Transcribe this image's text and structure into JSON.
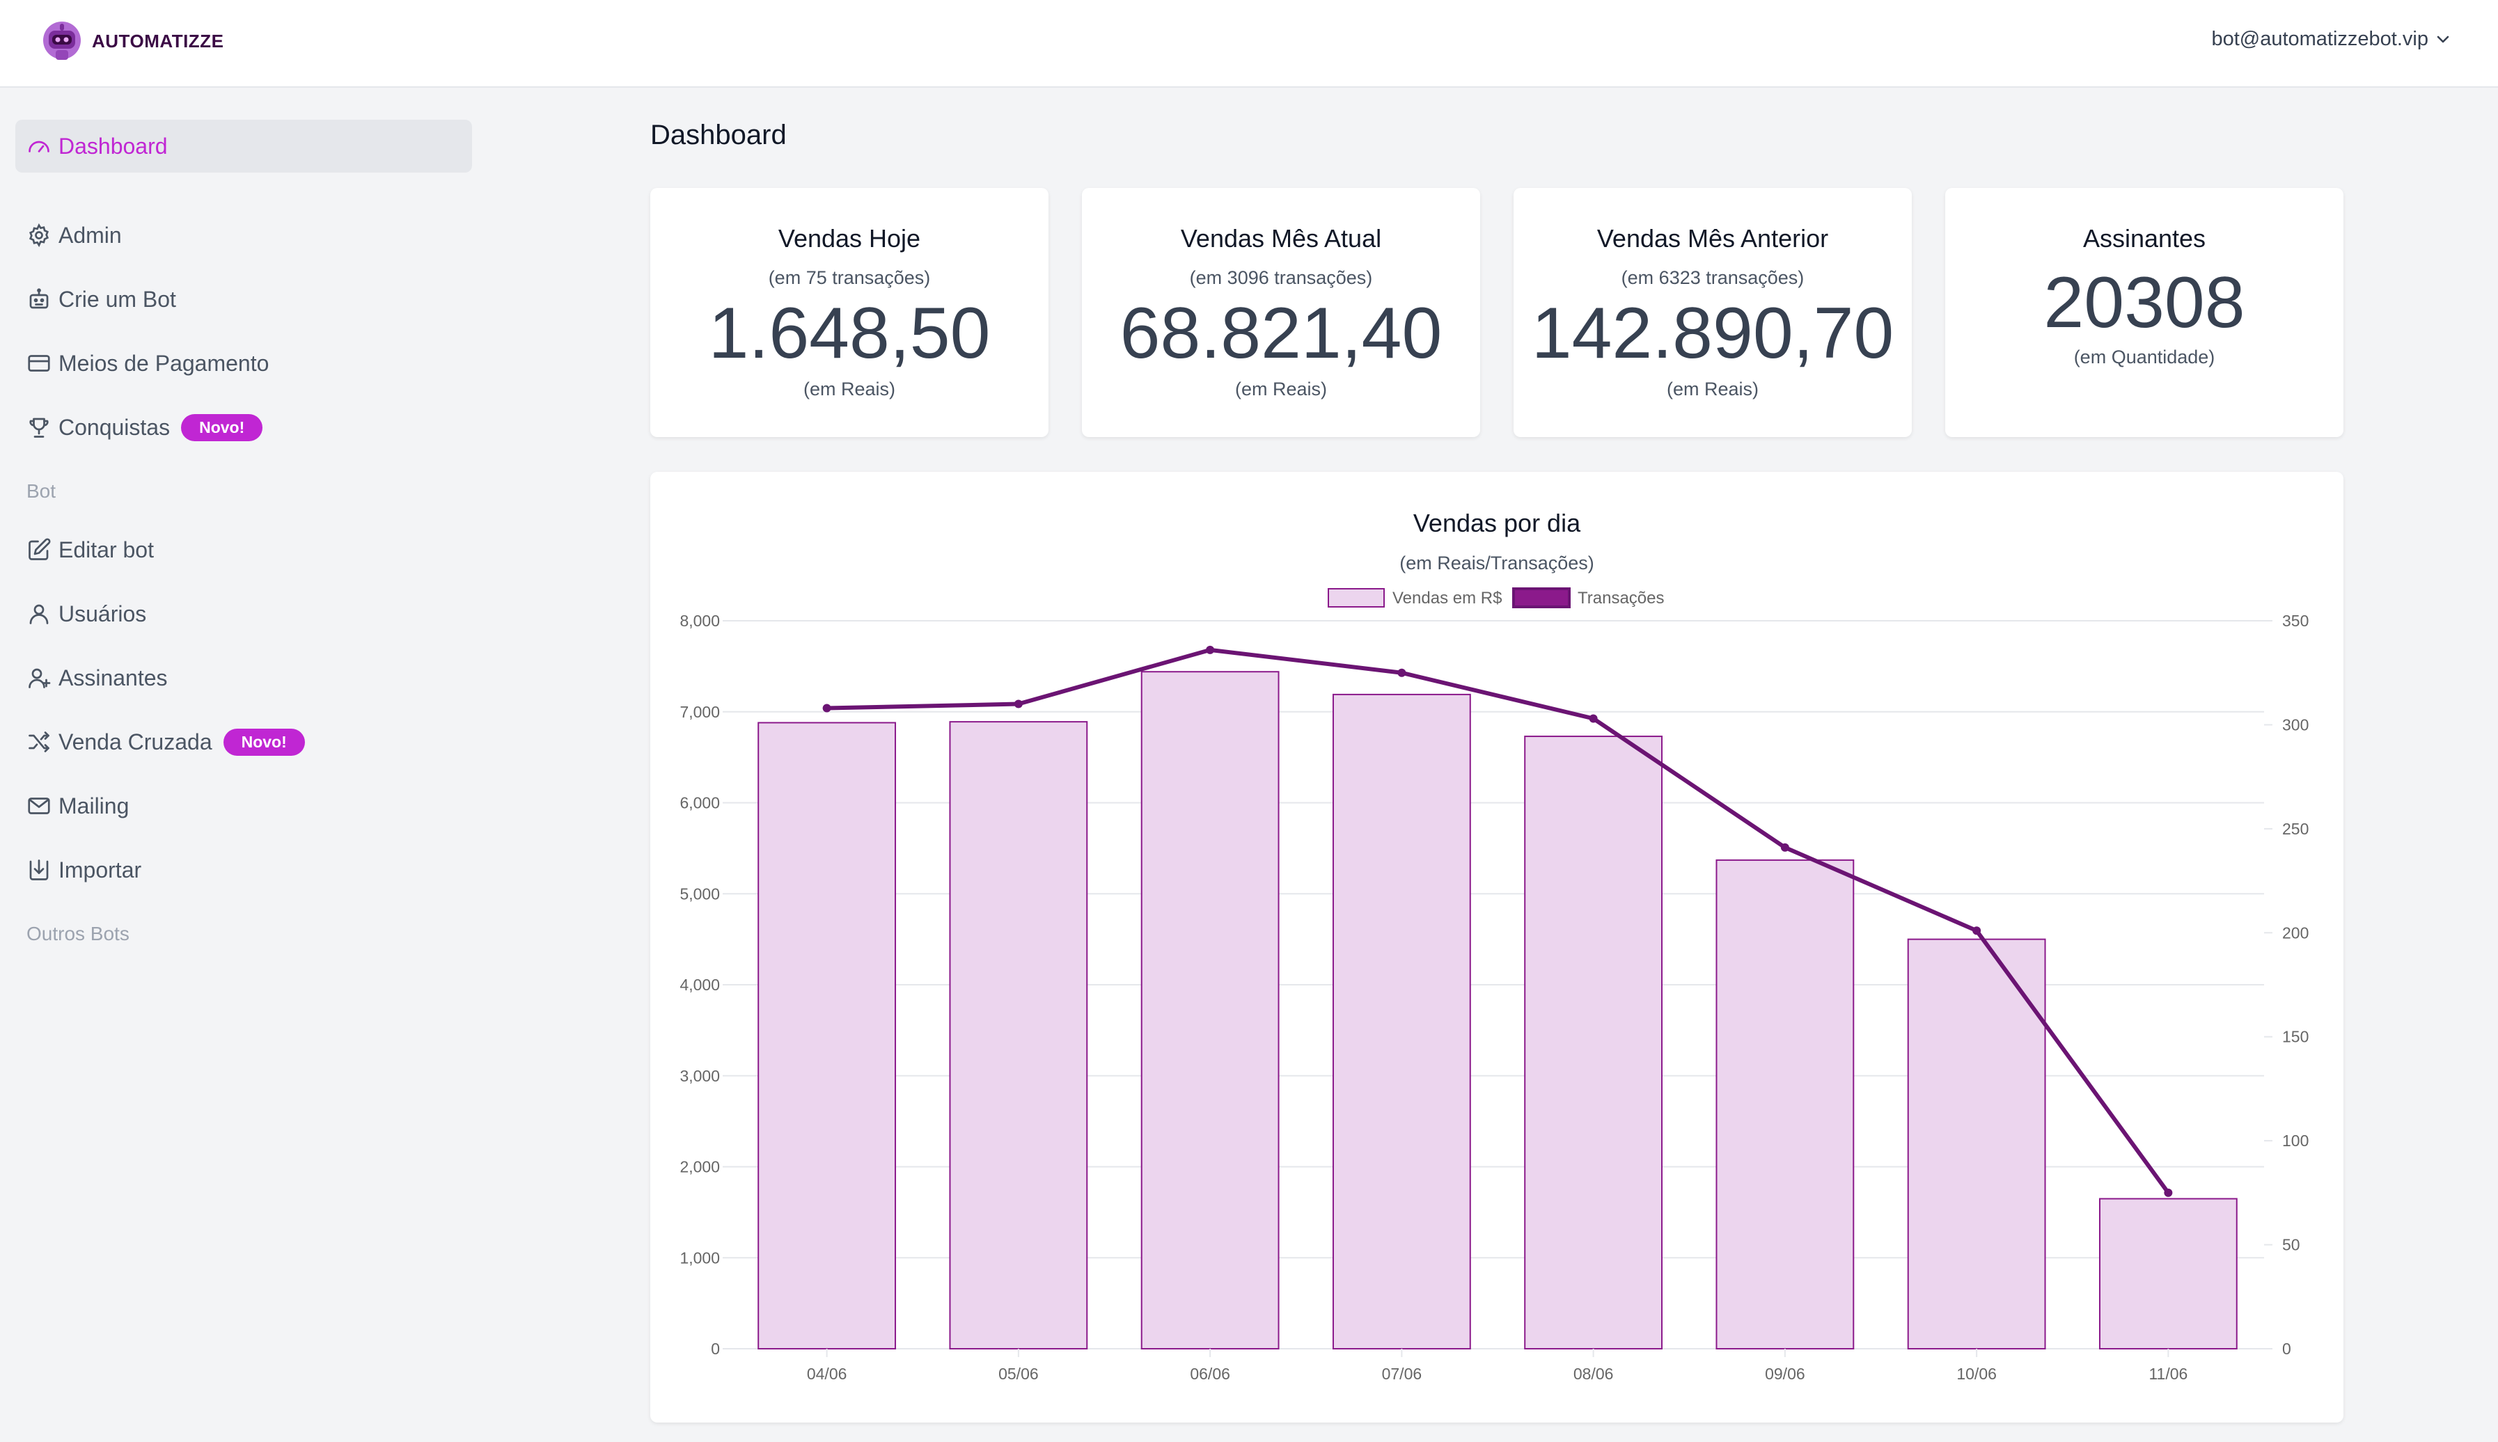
{
  "app": {
    "brand": "AUTOMATIZZE",
    "user_email": "bot@automatizzebot.vip"
  },
  "sidebar": {
    "items": [
      {
        "label": "Dashboard"
      },
      {
        "label": "Admin"
      },
      {
        "label": "Crie um Bot"
      },
      {
        "label": "Meios de Pagamento"
      },
      {
        "label": "Conquistas",
        "badge": "Novo!"
      },
      {
        "label": "Editar bot"
      },
      {
        "label": "Usuários"
      },
      {
        "label": "Assinantes"
      },
      {
        "label": "Venda Cruzada",
        "badge": "Novo!"
      },
      {
        "label": "Mailing"
      },
      {
        "label": "Importar"
      }
    ],
    "section_bot": "Bot",
    "section_outros": "Outros Bots"
  },
  "page": {
    "title": "Dashboard"
  },
  "cards": [
    {
      "title": "Vendas Hoje",
      "sub": "(em 75 transações)",
      "value": "1.648,50",
      "foot": "(em Reais)"
    },
    {
      "title": "Vendas Mês Atual",
      "sub": "(em 3096 transações)",
      "value": "68.821,40",
      "foot": "(em Reais)"
    },
    {
      "title": "Vendas Mês Anterior",
      "sub": "(em 6323 transações)",
      "value": "142.890,70",
      "foot": "(em Reais)"
    },
    {
      "title": "Assinantes",
      "value": "20308",
      "foot": "(em Quantidade)"
    }
  ],
  "colors": {
    "accent": "#c026d3",
    "bar_fill": "#ecd5ee",
    "bar_border": "#8b1a8b",
    "line": "#6b1473"
  },
  "chart_data": {
    "type": "bar",
    "title": "Vendas por dia",
    "subtitle": "(em Reais/Transações)",
    "categories": [
      "04/06",
      "05/06",
      "06/06",
      "07/06",
      "08/06",
      "09/06",
      "10/06",
      "11/06"
    ],
    "series": [
      {
        "name": "Vendas em R$",
        "type": "bar",
        "axis": "left",
        "values": [
          6880,
          6890,
          7440,
          7190,
          6730,
          5370,
          4500,
          1648.5
        ]
      },
      {
        "name": "Transações",
        "type": "line",
        "axis": "right",
        "values": [
          308,
          310,
          336,
          325,
          303,
          241,
          201,
          75
        ]
      }
    ],
    "y_left": {
      "min": 0,
      "max": 8000,
      "ticks": [
        "0",
        "1,000",
        "2,000",
        "3,000",
        "4,000",
        "5,000",
        "6,000",
        "7,000",
        "8,000"
      ]
    },
    "y_right": {
      "min": 0,
      "max": 350,
      "ticks": [
        "0",
        "50",
        "100",
        "150",
        "200",
        "250",
        "300",
        "350"
      ]
    },
    "legend_position": "top-center",
    "grid": true
  }
}
